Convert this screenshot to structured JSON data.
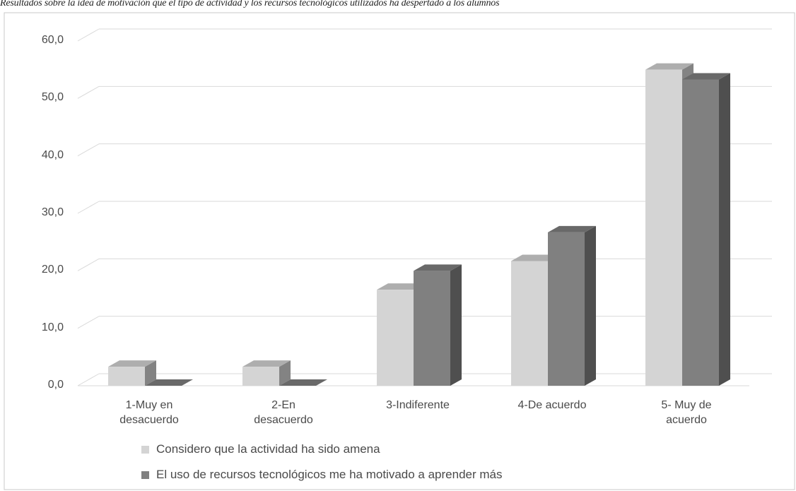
{
  "title": "Resultados sobre la idea de motivación que el tipo de actividad y los recursos tecnológicos utilizados ha despertado a los alumnos",
  "chart_data": {
    "type": "bar",
    "title": "Resultados sobre la idea de motivación que el tipo de actividad y los recursos tecnológicos utilizados ha despertado a los alumnos",
    "categories": [
      [
        "1-Muy en",
        "desacuerdo"
      ],
      [
        "2-En",
        "desacuerdo"
      ],
      [
        "3-Indiferente"
      ],
      [
        "4-De acuerdo"
      ],
      [
        "5- Muy de",
        "acuerdo"
      ]
    ],
    "series": [
      {
        "name": "Considero que la actividad ha sido amena",
        "values": [
          3.3,
          3.3,
          16.7,
          21.7,
          55.0
        ],
        "color": "#d4d4d4"
      },
      {
        "name": "El uso de recursos tecnológicos me ha motivado a aprender más",
        "values": [
          0.0,
          0.0,
          20.0,
          26.7,
          53.3
        ],
        "color": "#808080"
      }
    ],
    "yticks": [
      "0,0",
      "10,0",
      "20,0",
      "30,0",
      "40,0",
      "50,0",
      "60,0"
    ],
    "ylim": [
      0,
      60
    ],
    "grid": true,
    "legend": "bottom",
    "style": "3d-column"
  }
}
